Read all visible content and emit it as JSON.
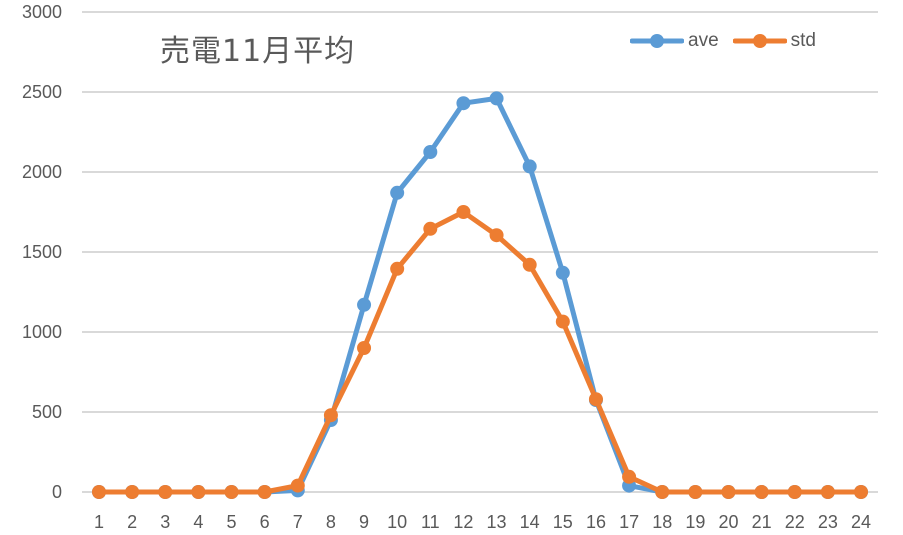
{
  "chart_data": {
    "type": "line",
    "title": "売電11月平均",
    "xlabel": "",
    "ylabel": "",
    "x": [
      1,
      2,
      3,
      4,
      5,
      6,
      7,
      8,
      9,
      10,
      11,
      12,
      13,
      14,
      15,
      16,
      17,
      18,
      19,
      20,
      21,
      22,
      23,
      24
    ],
    "ylim": [
      0,
      3000
    ],
    "yticks": [
      0,
      500,
      1000,
      1500,
      2000,
      2500,
      3000
    ],
    "grid": true,
    "legend_position": "top-right",
    "series": [
      {
        "name": "ave",
        "color": "#5B9BD5",
        "values": [
          0,
          0,
          0,
          0,
          0,
          0,
          10,
          450,
          1170,
          1870,
          2125,
          2430,
          2460,
          2035,
          1370,
          575,
          40,
          0,
          0,
          0,
          0,
          0,
          0,
          0
        ]
      },
      {
        "name": "std",
        "color": "#ED7D31",
        "values": [
          0,
          0,
          0,
          0,
          0,
          0,
          40,
          480,
          900,
          1395,
          1645,
          1750,
          1605,
          1420,
          1065,
          580,
          95,
          0,
          0,
          0,
          0,
          0,
          0,
          0
        ]
      }
    ]
  }
}
